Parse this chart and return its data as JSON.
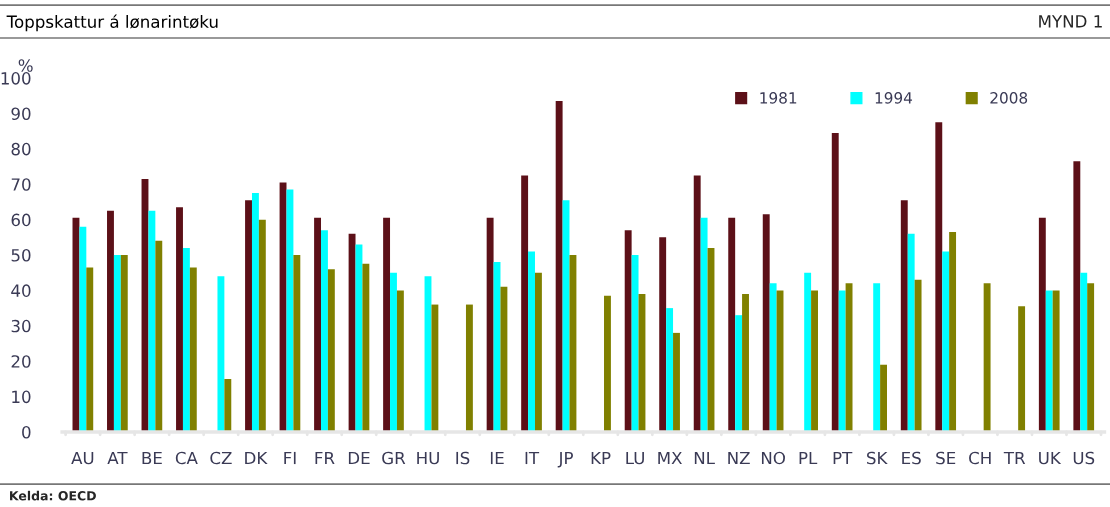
{
  "chart_data": {
    "type": "bar",
    "title": "Toppskattur á lønarintøku",
    "ylabel": "%",
    "annotations": [
      "MYND 1",
      "Kelda: OECD"
    ],
    "categories": [
      "AU",
      "AT",
      "BE",
      "CA",
      "CZ",
      "DK",
      "FI",
      "FR",
      "DE",
      "GR",
      "HU",
      "IS",
      "IE",
      "IT",
      "JP",
      "KP",
      "LU",
      "MX",
      "NL",
      "NZ",
      "NO",
      "PL",
      "PT",
      "SK",
      "ES",
      "SE",
      "CH",
      "TR",
      "UK",
      "US"
    ],
    "series": [
      {
        "name": "1981",
        "color": "#5c1018",
        "values": [
          60.5,
          62.5,
          71.5,
          63.5,
          null,
          65.5,
          70.5,
          60.5,
          56,
          60.5,
          null,
          null,
          60.5,
          72.5,
          93.5,
          null,
          57,
          55,
          72.5,
          60.5,
          61.5,
          null,
          84.5,
          null,
          65.5,
          87.5,
          null,
          null,
          60.5,
          76.5
        ]
      },
      {
        "name": "1994",
        "color": "#00ffff",
        "values": [
          58,
          50,
          62.5,
          52,
          44,
          67.5,
          68.5,
          57,
          53,
          45,
          44,
          null,
          48,
          51,
          65.5,
          null,
          50,
          35,
          60.5,
          33,
          42,
          45,
          40,
          42,
          56,
          51,
          null,
          null,
          40,
          45
        ]
      },
      {
        "name": "2008",
        "color": "#808000",
        "values": [
          46.5,
          50,
          54,
          46.5,
          15,
          60,
          50,
          46,
          47.5,
          40,
          36,
          36,
          41,
          45,
          50,
          38.5,
          39,
          28,
          52,
          39,
          40,
          40,
          42,
          19,
          43,
          56.5,
          42,
          35.5,
          40,
          42
        ]
      }
    ],
    "ylim": [
      0,
      100
    ],
    "yticks": [
      0,
      10,
      20,
      30,
      40,
      50,
      60,
      70,
      80,
      90,
      100
    ],
    "grid": false,
    "legend": "top right"
  }
}
